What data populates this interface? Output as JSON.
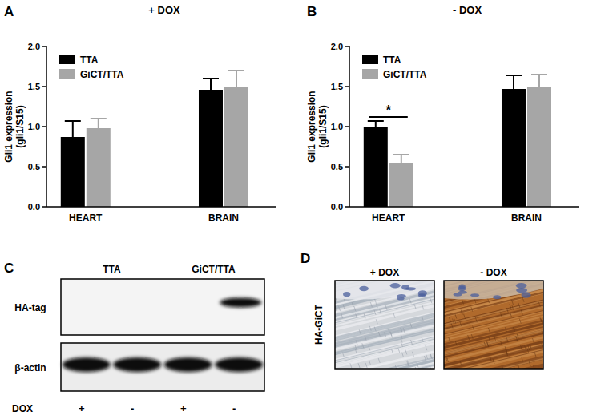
{
  "chart_data": [
    {
      "type": "bar",
      "panel": "A",
      "title": "+ DOX",
      "ylabel": [
        "Gli1 expression",
        "(gli1/S15)"
      ],
      "categories": [
        "HEART",
        "BRAIN"
      ],
      "series": [
        {
          "name": "TTA",
          "color": "#000000",
          "values": [
            0.87,
            1.46
          ],
          "errors": [
            0.2,
            0.14
          ]
        },
        {
          "name": "GiCT/TTA",
          "color": "#a6a6a6",
          "values": [
            0.98,
            1.5
          ],
          "errors": [
            0.12,
            0.2
          ]
        }
      ],
      "ylim": [
        0,
        2.0
      ],
      "yticks": [
        {
          "value": 0,
          "label": "0.0"
        },
        {
          "value": 0.5,
          "label": "0.5"
        },
        {
          "value": 1.0,
          "label": "1.0"
        },
        {
          "value": 1.5,
          "label": "1.5"
        },
        {
          "value": 2.0,
          "label": "2.0"
        }
      ],
      "legend": "upper-left",
      "grid": false
    },
    {
      "type": "bar",
      "panel": "B",
      "title": "- DOX",
      "ylabel": [
        "Gli1 expression",
        "(gli1/S15)"
      ],
      "categories": [
        "HEART",
        "BRAIN"
      ],
      "series": [
        {
          "name": "TTA",
          "color": "#000000",
          "values": [
            1.0,
            1.47
          ],
          "errors": [
            0.07,
            0.17
          ]
        },
        {
          "name": "GiCT/TTA",
          "color": "#a6a6a6",
          "values": [
            0.55,
            1.5
          ],
          "errors": [
            0.1,
            0.15
          ]
        }
      ],
      "ylim": [
        0,
        2.0
      ],
      "yticks": [
        {
          "value": 0,
          "label": "0.0"
        },
        {
          "value": 0.5,
          "label": "0.5"
        },
        {
          "value": 1.0,
          "label": "1.0"
        },
        {
          "value": 1.5,
          "label": "1.5"
        },
        {
          "value": 2.0,
          "label": "2.0"
        }
      ],
      "annotations": [
        {
          "text": "*",
          "category": 0,
          "series": [
            0,
            1
          ]
        }
      ],
      "legend": "upper-left",
      "grid": false
    }
  ],
  "blot": {
    "panel": "C",
    "groups": [
      "TTA",
      "GiCT/TTA"
    ],
    "condition_label": "DOX",
    "conditions": [
      "+",
      "-",
      "+",
      "-"
    ],
    "rows": [
      {
        "label": "HA-tag",
        "bands": [
          0,
          0,
          0,
          1
        ]
      },
      {
        "label": "β-actin",
        "bands": [
          1,
          1,
          1,
          1
        ]
      }
    ]
  },
  "ihc": {
    "panel": "D",
    "stain_label": "HA-GiCT",
    "images": [
      {
        "label": "+ DOX",
        "stained": false
      },
      {
        "label": "- DOX",
        "stained": true
      }
    ]
  }
}
